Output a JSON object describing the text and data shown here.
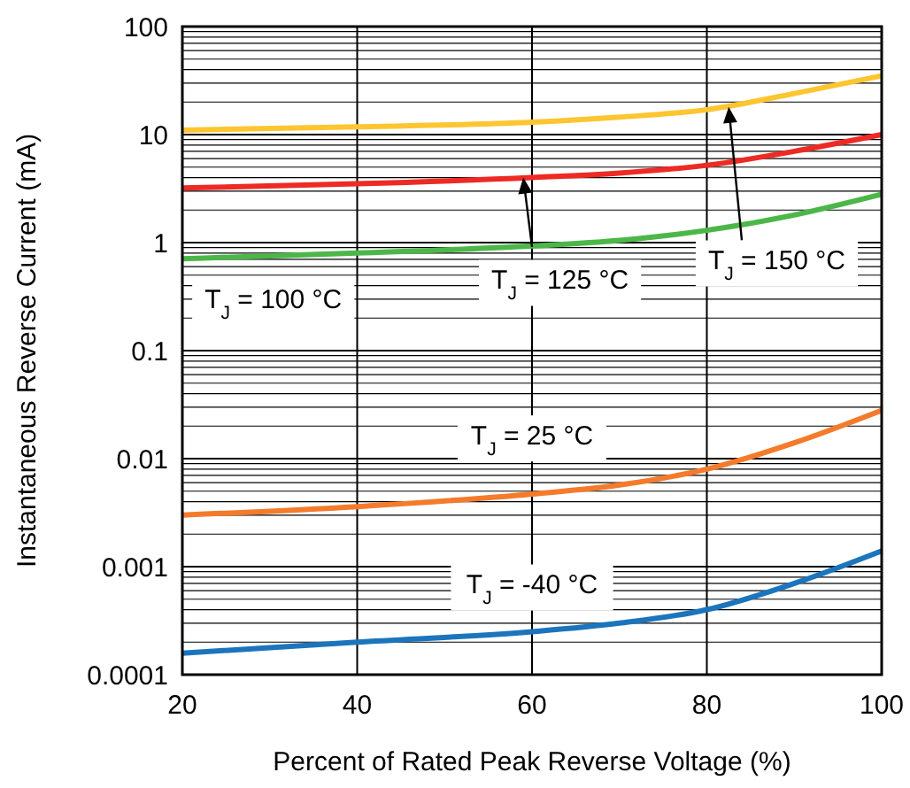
{
  "chart_data": {
    "type": "line",
    "xlabel": "Percent of Rated Peak Reverse Voltage (%)",
    "ylabel": "Instantaneous Reverse Current (mA)",
    "x": [
      20,
      40,
      60,
      70,
      80,
      90,
      100
    ],
    "series": [
      {
        "color": "#fdc530",
        "values": [
          11,
          11.8,
          13,
          14.5,
          17,
          24,
          35
        ]
      },
      {
        "color": "#ee2a24",
        "values": [
          3.2,
          3.5,
          4,
          4.4,
          5.2,
          7,
          10
        ]
      },
      {
        "color": "#4cb748",
        "values": [
          0.71,
          0.8,
          0.93,
          1.05,
          1.3,
          1.8,
          2.8
        ]
      },
      {
        "color": "#f47b2b",
        "values": [
          0.003,
          0.0036,
          0.0047,
          0.0057,
          0.008,
          0.014,
          0.028
        ]
      },
      {
        "color": "#1c75bc",
        "values": [
          0.000158,
          0.0002,
          0.00025,
          0.0003,
          0.0004,
          0.0007,
          0.0014
        ]
      }
    ],
    "xlim": [
      20,
      100
    ],
    "xticks": [
      20,
      40,
      60,
      80,
      100
    ],
    "ylim": [
      0.0001,
      100
    ],
    "log": "y",
    "yticks": [
      0.0001,
      {
        "value": 0.0002,
        "label": null
      },
      {
        "value": 0.0003,
        "label": null
      },
      {
        "value": 0.0004,
        "label": null
      },
      {
        "value": 0.0005,
        "label": null
      },
      {
        "value": 0.0006,
        "label": null
      },
      {
        "value": 0.0007,
        "label": null
      },
      {
        "value": 0.0008,
        "label": null
      },
      {
        "value": 0.0009,
        "label": null
      },
      0.001,
      {
        "value": 0.002,
        "label": null
      },
      {
        "value": 0.003,
        "label": null
      },
      {
        "value": 0.004,
        "label": null
      },
      {
        "value": 0.005,
        "label": null
      },
      {
        "value": 0.006,
        "label": null
      },
      {
        "value": 0.007,
        "label": null
      },
      {
        "value": 0.008,
        "label": null
      },
      {
        "value": 0.009,
        "label": null
      },
      0.01,
      {
        "value": 0.02,
        "label": null
      },
      {
        "value": 0.03,
        "label": null
      },
      {
        "value": 0.04,
        "label": null
      },
      {
        "value": 0.05,
        "label": null
      },
      {
        "value": 0.06,
        "label": null
      },
      {
        "value": 0.07,
        "label": null
      },
      {
        "value": 0.08,
        "label": null
      },
      {
        "value": 0.09,
        "label": null
      },
      0.1,
      {
        "value": 0.2,
        "label": null
      },
      {
        "value": 0.3,
        "label": null
      },
      {
        "value": 0.4,
        "label": null
      },
      {
        "value": 0.5,
        "label": null
      },
      {
        "value": 0.6,
        "label": null
      },
      {
        "value": 0.7,
        "label": null
      },
      {
        "value": 0.8,
        "label": null
      },
      {
        "value": 0.9,
        "label": null
      },
      1,
      {
        "value": 2,
        "label": null
      },
      {
        "value": 3,
        "label": null
      },
      {
        "value": 4,
        "label": null
      },
      {
        "value": 5,
        "label": null
      },
      {
        "value": 6,
        "label": null
      },
      {
        "value": 7,
        "label": null
      },
      {
        "value": 8,
        "label": null
      },
      {
        "value": 9,
        "label": null
      },
      10,
      {
        "value": 20,
        "label": null
      },
      {
        "value": 30,
        "label": null
      },
      {
        "value": 40,
        "label": null
      },
      {
        "value": 50,
        "label": null
      },
      {
        "value": 60,
        "label": null
      },
      {
        "value": 70,
        "label": null
      },
      {
        "value": 80,
        "label": null
      },
      {
        "value": 90,
        "label": null
      },
      100
    ],
    "grid": true,
    "annotations": [
      "T$_{J}$ = 100 °C",
      {
        "text": "T$_{J}$ = 125 °C",
        "x": 59,
        "y": 4
      },
      {
        "text": "T$_{J}$ = 150 °C",
        "x": 82.5,
        "y": 18
      },
      "T$_{J}$ = 25 °C",
      "T$_{J}$ = -40 °C"
    ]
  }
}
